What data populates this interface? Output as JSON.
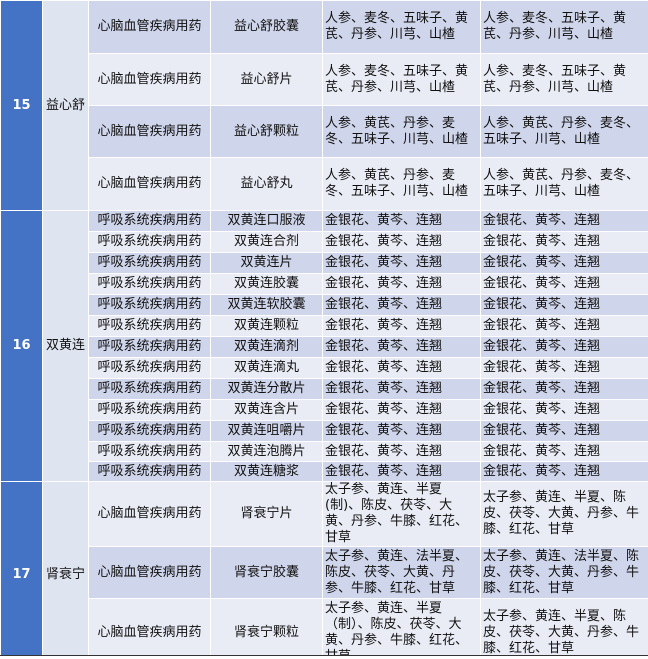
{
  "groups": [
    {
      "number": "15",
      "name": "益心舒",
      "rows": [
        {
          "category": "心脑血管疾病用药",
          "product": "益心舒胶囊",
          "ingredients_a": "人参、麦冬、五味子、黄芪、丹参、川芎、山楂",
          "ingredients_b": "人参、麦冬、五味子、黄芪、丹参、川芎、山楂",
          "h": 53
        },
        {
          "category": "心脑血管疾病用药",
          "product": "益心舒片",
          "ingredients_a": "人参、麦冬、五味子、黄芪、丹参、川芎、山楂",
          "ingredients_b": "人参、麦冬、五味子、黄芪、丹参、川芎、山楂",
          "h": 52
        },
        {
          "category": "心脑血管疾病用药",
          "product": "益心舒颗粒",
          "ingredients_a": "人参、黄芪、丹参、麦冬、五味子、川芎、山楂",
          "ingredients_b": "人参、黄芪、丹参、麦冬、五味子、川芎、山楂",
          "h": 52
        },
        {
          "category": "心脑血管疾病用药",
          "product": "益心舒丸",
          "ingredients_a": "人参、黄芪、丹参、麦冬、五味子、川芎、山楂",
          "ingredients_b": "人参、黄芪、丹参、麦冬、五味子、川芎、山楂",
          "h": 53
        }
      ]
    },
    {
      "number": "16",
      "name": "双黄连",
      "rows": [
        {
          "category": "呼吸系统疾病用药",
          "product": "双黄连口服液",
          "ingredients_a": "金银花、黄芩、连翘",
          "ingredients_b": "金银花、黄芩、连翘",
          "h": 21
        },
        {
          "category": "呼吸系统疾病用药",
          "product": "双黄连合剂",
          "ingredients_a": "金银花、黄芩、连翘",
          "ingredients_b": "金银花、黄芩、连翘",
          "h": 21
        },
        {
          "category": "呼吸系统疾病用药",
          "product": "双黄连片",
          "ingredients_a": "金银花、黄芩、连翘",
          "ingredients_b": "金银花、黄芩、连翘",
          "h": 21
        },
        {
          "category": "呼吸系统疾病用药",
          "product": "双黄连胶囊",
          "ingredients_a": "金银花、黄芩、连翘",
          "ingredients_b": "金银花、黄芩、连翘",
          "h": 21
        },
        {
          "category": "呼吸系统疾病用药",
          "product": "双黄连软胶囊",
          "ingredients_a": "金银花、黄芩、连翘",
          "ingredients_b": "金银花、黄芩、连翘",
          "h": 21
        },
        {
          "category": "呼吸系统疾病用药",
          "product": "双黄连颗粒",
          "ingredients_a": "金银花、黄芩、连翘",
          "ingredients_b": "金银花、黄芩、连翘",
          "h": 21
        },
        {
          "category": "呼吸系统疾病用药",
          "product": "双黄连滴剂",
          "ingredients_a": "金银花、黄芩、连翘",
          "ingredients_b": "金银花、黄芩、连翘",
          "h": 21
        },
        {
          "category": "呼吸系统疾病用药",
          "product": "双黄连滴丸",
          "ingredients_a": "金银花、黄芩、连翘",
          "ingredients_b": "金银花、黄芩、连翘",
          "h": 21
        },
        {
          "category": "呼吸系统疾病用药",
          "product": "双黄连分散片",
          "ingredients_a": "金银花、黄芩、连翘",
          "ingredients_b": "金银花、黄芩、连翘",
          "h": 21
        },
        {
          "category": "呼吸系统疾病用药",
          "product": "双黄连含片",
          "ingredients_a": "金银花、黄芩、连翘",
          "ingredients_b": "金银花、黄芩、连翘",
          "h": 21
        },
        {
          "category": "呼吸系统疾病用药",
          "product": "双黄连咀嚼片",
          "ingredients_a": "金银花、黄芩、连翘",
          "ingredients_b": "金银花、黄芩、连翘",
          "h": 21
        },
        {
          "category": "呼吸系统疾病用药",
          "product": "双黄连泡腾片",
          "ingredients_a": "金银花、黄芩、连翘",
          "ingredients_b": "金银花、黄芩、连翘",
          "h": 20
        },
        {
          "category": "呼吸系统疾病用药",
          "product": "双黄连糖浆",
          "ingredients_a": "金银花、黄芩、连翘",
          "ingredients_b": "金银花、黄芩、连翘",
          "h": 20
        }
      ]
    },
    {
      "number": "17",
      "name": "肾衰宁",
      "rows": [
        {
          "category": "心脑血管疾病用药",
          "product": "肾衰宁片",
          "ingredients_a": "太子参、黄连、半夏(制)、陈皮、茯苓、大黄、丹参、牛膝、红花、甘草",
          "ingredients_b": "太子参、黄连、半夏、陈皮、茯苓、大黄、丹参、牛膝、红花、甘草",
          "h": 52
        },
        {
          "category": "心脑血管疾病用药",
          "product": "肾衰宁胶囊",
          "ingredients_a": "太子参、黄连、法半夏、陈皮、茯苓、大黄、丹参、牛膝、红花、甘草",
          "ingredients_b": "太子参、黄连、法半夏、陈皮、茯苓、大黄、丹参、牛膝、红花、甘草",
          "h": 52
        },
        {
          "category": "心脑血管疾病用药",
          "product": "肾衰宁颗粒",
          "ingredients_a": "太子参、黄连、半夏（制）、陈皮、茯苓、大黄、丹参、牛膝、红花、甘草",
          "ingredients_b": "太子参、黄连、半夏、陈皮、茯苓、大黄、丹参、牛膝、红花、甘草",
          "h": 69
        }
      ]
    }
  ],
  "colors": {
    "number_bg": "#4472c4",
    "row_dark": "#cfd5ea",
    "row_light": "#e9ecf5",
    "name_bg": "#dfe4f1"
  }
}
